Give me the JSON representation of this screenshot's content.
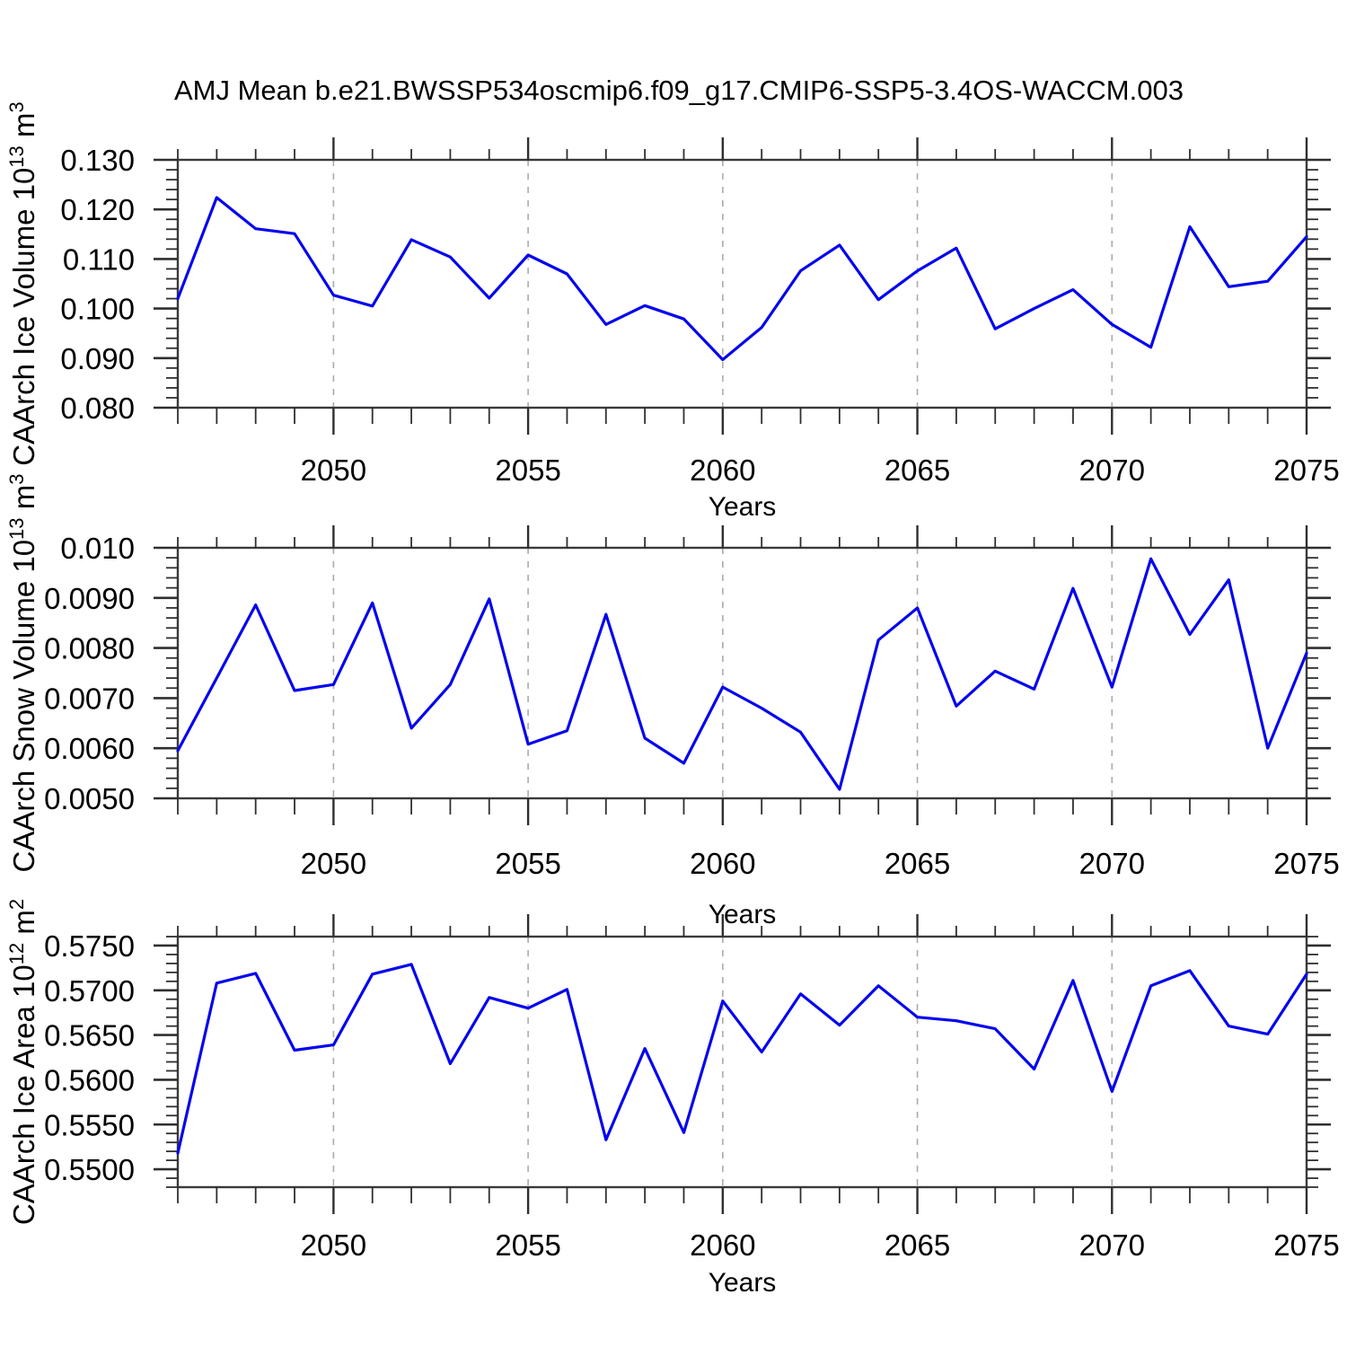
{
  "chart_data": {
    "type": "line",
    "title": "AMJ Mean b.e21.BWSSP534oscmip6.f09_g17.CMIP6-SSP5-3.4OS-WACCM.003",
    "xlabel": "Years",
    "xlim": [
      2046,
      2075
    ],
    "x": [
      2046,
      2047,
      2048,
      2049,
      2050,
      2051,
      2052,
      2053,
      2054,
      2055,
      2056,
      2057,
      2058,
      2059,
      2060,
      2061,
      2062,
      2063,
      2064,
      2065,
      2066,
      2067,
      2068,
      2069,
      2070,
      2071,
      2072,
      2073,
      2074,
      2075
    ],
    "x_tick_labels": [
      "2050",
      "2055",
      "2060",
      "2065",
      "2070",
      "2075"
    ],
    "x_major_ticks": [
      2050,
      2055,
      2060,
      2065,
      2070,
      2075
    ],
    "x_minor_step": 1,
    "gridlines_x": [
      2050,
      2055,
      2060,
      2065,
      2070
    ],
    "grid_style": "vertical-dashed",
    "legend": "none",
    "line_color": "#0404ee",
    "panels": [
      {
        "name": "ice-volume",
        "ylabel": "CAArch Ice Volume 10^13 m^3",
        "ylabel_parts": [
          {
            "t": "CAArch Ice Volume 10"
          },
          {
            "t": "13",
            "sup": true
          },
          {
            "t": " m"
          },
          {
            "t": "3",
            "sup": true
          }
        ],
        "ylim": [
          0.08,
          0.13
        ],
        "yticks": [
          0.08,
          0.09,
          0.1,
          0.11,
          0.12,
          0.13
        ],
        "ytick_labels": [
          "0.080",
          "0.090",
          "0.100",
          "0.110",
          "0.120",
          "0.130"
        ],
        "y_minor_step": 0.002,
        "values": [
          0.102,
          0.1224,
          0.1161,
          0.1151,
          0.1027,
          0.1005,
          0.1139,
          0.1104,
          0.1021,
          0.1108,
          0.107,
          0.0968,
          0.1006,
          0.0979,
          0.0897,
          0.0962,
          0.1076,
          0.1128,
          0.1018,
          0.1076,
          0.1122,
          0.0959,
          0.1,
          0.1038,
          0.0968,
          0.0922,
          0.1165,
          0.1044,
          0.1055,
          0.1145
        ]
      },
      {
        "name": "snow-volume",
        "ylabel": "CAArch Snow Volume 10^13 m^3",
        "ylabel_parts": [
          {
            "t": "CAArch Snow Volume 10"
          },
          {
            "t": "13",
            "sup": true
          },
          {
            "t": " m"
          },
          {
            "t": "3",
            "sup": true
          }
        ],
        "ylim": [
          0.005,
          0.01
        ],
        "yticks": [
          0.005,
          0.006,
          0.007,
          0.008,
          0.009,
          0.01
        ],
        "ytick_labels": [
          "0.0050",
          "0.0060",
          "0.0070",
          "0.0080",
          "0.0090",
          "0.010"
        ],
        "y_minor_step": 0.0002,
        "values": [
          0.00595,
          0.0074,
          0.00886,
          0.00715,
          0.00727,
          0.0089,
          0.0064,
          0.00727,
          0.00898,
          0.00608,
          0.00635,
          0.00867,
          0.0062,
          0.0057,
          0.00722,
          0.0068,
          0.00632,
          0.00518,
          0.00816,
          0.0088,
          0.00684,
          0.00754,
          0.00718,
          0.00919,
          0.00722,
          0.00978,
          0.00827,
          0.00936,
          0.006,
          0.0079
        ]
      },
      {
        "name": "ice-area",
        "ylabel": "CAArch Ice Area 10^12 m^2",
        "ylabel_parts": [
          {
            "t": "CAArch Ice Area 10"
          },
          {
            "t": "12",
            "sup": true
          },
          {
            "t": " m"
          },
          {
            "t": "2",
            "sup": true
          }
        ],
        "ylim": [
          0.548,
          0.576
        ],
        "yticks": [
          0.55,
          0.555,
          0.56,
          0.565,
          0.57,
          0.575
        ],
        "ytick_labels": [
          "0.5500",
          "0.5550",
          "0.5600",
          "0.5650",
          "0.5700",
          "0.5750"
        ],
        "y_minor_step": 0.001,
        "values": [
          0.5518,
          0.5708,
          0.5719,
          0.5633,
          0.5639,
          0.5718,
          0.5729,
          0.5618,
          0.5692,
          0.568,
          0.5701,
          0.5533,
          0.5635,
          0.5541,
          0.5688,
          0.5631,
          0.5696,
          0.5661,
          0.5705,
          0.567,
          0.5666,
          0.5657,
          0.5612,
          0.5711,
          0.5587,
          0.5705,
          0.5722,
          0.566,
          0.5651,
          0.5718
        ]
      }
    ]
  }
}
